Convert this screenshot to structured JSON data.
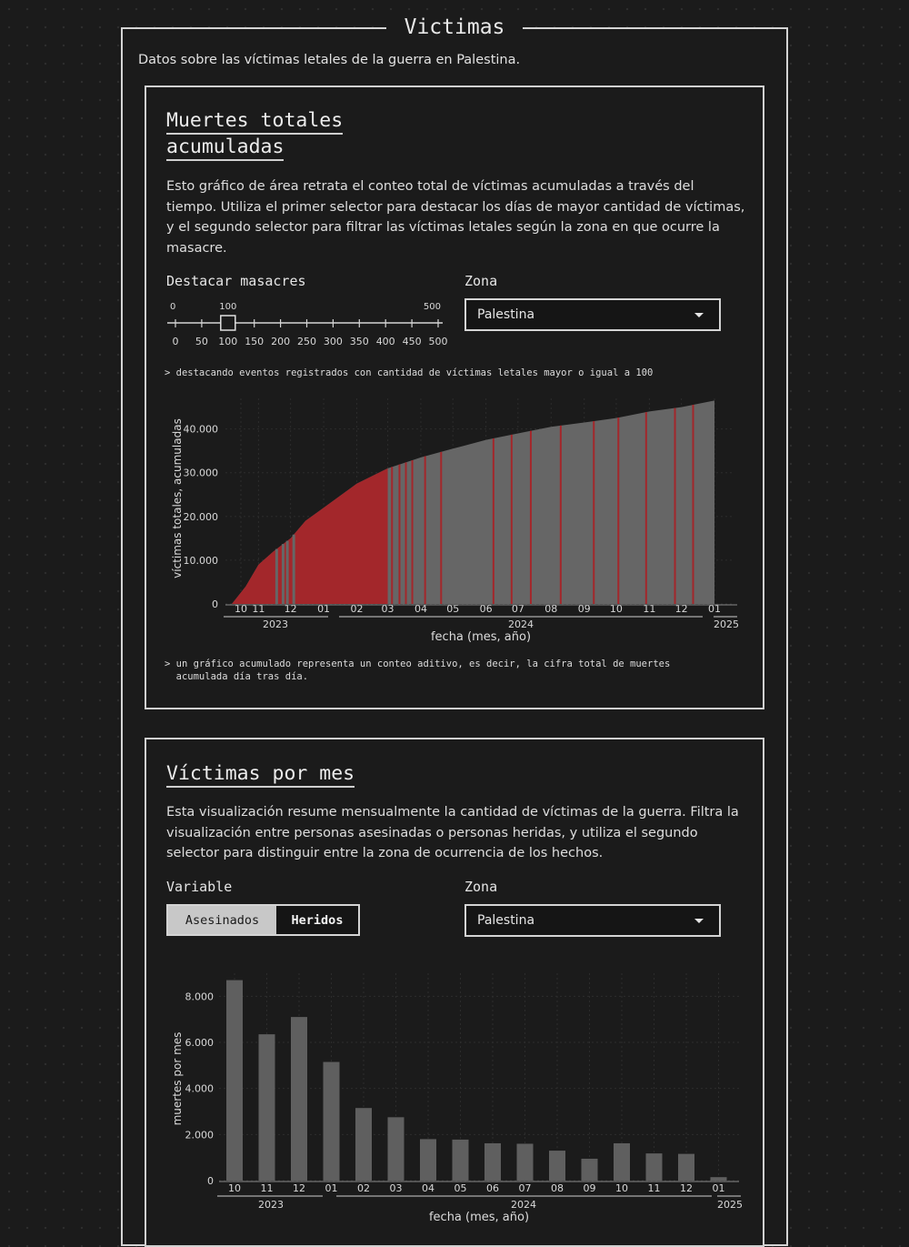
{
  "section": {
    "title": "Victimas",
    "subtitle": "Datos sobre las víctimas letales de la guerra en Palestina."
  },
  "cumulative": {
    "title_line1": "Muertes totales",
    "title_line2": "acumuladas",
    "description": "Esto gráfico de área retrata el conteo total de víctimas acumuladas a través del tiempo. Utiliza el primer selector para destacar los días de mayor cantidad de víctimas, y el segundo selector para filtrar las víctimas letales según la zona en que ocurre la masacre.",
    "slider": {
      "label": "Destacar masacres",
      "min_label": "0",
      "value_label": "100",
      "max_label": "500",
      "min": 0,
      "max": 500,
      "value": 100,
      "ticks": [
        "0",
        "50",
        "100",
        "150",
        "200",
        "250",
        "300",
        "350",
        "400",
        "450",
        "500"
      ]
    },
    "zone": {
      "label": "Zona",
      "selected": "Palestina"
    },
    "note_highlight": "> destacando eventos registrados con cantidad de víctimas letales mayor o igual a 100",
    "note_cumulative_line1": "> un gráfico acumulado representa un conteo aditivo, es decir, la cifra total de muertes",
    "note_cumulative_line2": "  acumulada día tras día."
  },
  "monthly": {
    "title": "Víctimas por mes",
    "description": "Esta visualización resume mensualmente la cantidad de víctimas de la guerra. Filtra la visualización entre personas asesinadas o personas heridas, y utiliza el segundo selector para distinguir entre la zona de ocurrencia de los hechos.",
    "variable": {
      "label": "Variable",
      "options": [
        "Asesinados",
        "Heridos"
      ],
      "active": "Asesinados"
    },
    "zone": {
      "label": "Zona",
      "selected": "Palestina"
    }
  },
  "colors": {
    "area_gray": "#666666",
    "highlight_red": "#a3272b",
    "bar_gray": "#5f5f5f",
    "background": "#1b1b1b"
  },
  "chart_data": [
    {
      "type": "area",
      "xlabel": "fecha (mes, año)",
      "ylabel": "víctimas totales, acumuladas",
      "ylim": [
        0,
        47000
      ],
      "y_ticks": [
        "0",
        "10.000",
        "20.000",
        "30.000",
        "40.000"
      ],
      "x_ticks": [
        "10",
        "11",
        "12",
        "01",
        "02",
        "03",
        "04",
        "05",
        "06",
        "07",
        "08",
        "09",
        "10",
        "11",
        "12",
        "01"
      ],
      "year_labels": [
        "2023",
        "2024",
        "2025"
      ],
      "x": [
        "2023-10-07",
        "2023-10-20",
        "2023-11-01",
        "2023-11-15",
        "2023-12-01",
        "2023-12-15",
        "2024-01-01",
        "2024-02-01",
        "2024-03-01",
        "2024-04-01",
        "2024-05-01",
        "2024-06-01",
        "2024-07-01",
        "2024-08-01",
        "2024-09-01",
        "2024-10-01",
        "2024-11-01",
        "2024-12-01",
        "2025-01-01"
      ],
      "y": [
        0,
        4000,
        9000,
        12000,
        15000,
        19000,
        22000,
        27500,
        31000,
        33500,
        35500,
        37500,
        39000,
        40500,
        41500,
        42500,
        44000,
        45000,
        46500
      ],
      "highlight_until": "2024-03-01",
      "highlight_days": [
        "2024-03-05",
        "2024-03-12",
        "2024-03-18",
        "2024-03-24",
        "2024-04-05",
        "2024-04-20",
        "2024-06-08",
        "2024-06-25",
        "2024-07-13",
        "2024-08-10",
        "2024-09-10",
        "2024-10-03",
        "2024-10-29",
        "2024-11-25",
        "2024-12-12"
      ],
      "highlight_threshold": 100
    },
    {
      "type": "bar",
      "xlabel": "fecha (mes, año)",
      "ylabel": "muertes por mes",
      "ylim": [
        0,
        9000
      ],
      "y_ticks": [
        "0",
        "2.000",
        "4.000",
        "6.000",
        "8.000"
      ],
      "categories": [
        "10",
        "11",
        "12",
        "01",
        "02",
        "03",
        "04",
        "05",
        "06",
        "07",
        "08",
        "09",
        "10",
        "11",
        "12",
        "01"
      ],
      "year_labels": [
        "2023",
        "2024",
        "2025"
      ],
      "values": [
        8700,
        6350,
        7100,
        5150,
        3150,
        2750,
        1800,
        1780,
        1620,
        1600,
        1300,
        950,
        1620,
        1180,
        1160,
        150
      ]
    }
  ]
}
